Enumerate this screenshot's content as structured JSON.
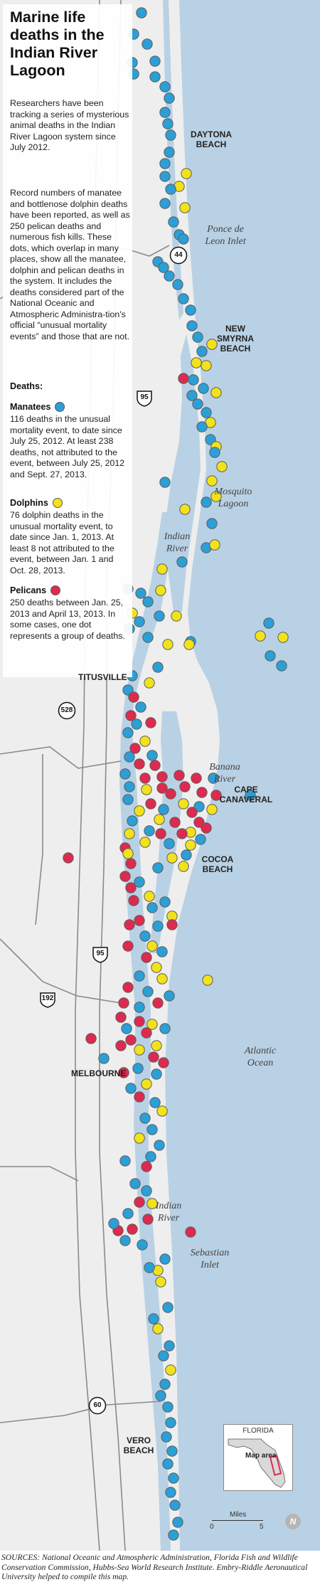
{
  "title": "Marine life deaths in the Indian River Lagoon",
  "intro": "Researchers have been tracking a series of mysterious animal deaths in the Indian River Lagoon system since July 2012.",
  "intro2": "Record numbers of manatee and bottlenose dolphin deaths have been reported, as well as 250 pelican deaths and numerous fish kills. These dots, which overlap in many places, show all the manatee, dolphin and pelican deaths in the system. It includes the deaths considered part of the National Oceanic and Atmospheric Administra-tion's official “unusual mortality events” and those that are not.",
  "legend": {
    "heading": "Deaths:",
    "items": [
      {
        "key": "manatee",
        "label": "Manatees",
        "color": "#2b9fd6",
        "text": "116 deaths in the unusual mortality event, to date since July 25, 2012. At least 238 deaths, not attributed to the event, between July 25, 2012 and Sept. 27, 2013."
      },
      {
        "key": "dolphin",
        "label": "Dolphins",
        "color": "#f2e21c",
        "text": "76 dolphin deaths in the unusual mortality event, to date since Jan. 1, 2013. At least 8 not attributed to the event, between Jan. 1 and Oct. 28, 2013."
      },
      {
        "key": "pelican",
        "label": "Pelicans",
        "color": "#dd2a4e",
        "text": "250 deaths between Jan. 25, 2013 and April 13, 2013. In some cases, one dot represents a group of deaths."
      }
    ]
  },
  "places": [
    {
      "name": "DAYTONA BEACH"
    },
    {
      "name": "NEW SMYRNA BEACH"
    },
    {
      "name": "TITUSVILLE"
    },
    {
      "name": "CAPE CANAVERAL"
    },
    {
      "name": "COCOA BEACH"
    },
    {
      "name": "MELBOURNE"
    },
    {
      "name": "VERO BEACH"
    }
  ],
  "water_labels": [
    {
      "name": "Ponce de Leon Inlet"
    },
    {
      "name": "Mosquito Lagoon"
    },
    {
      "name": "Indian River"
    },
    {
      "name": "Banana River"
    },
    {
      "name": "Atlantic Ocean"
    },
    {
      "name": "Indian River"
    },
    {
      "name": "Sebastian Inlet"
    }
  ],
  "highways": [
    {
      "number": "44",
      "type": "state"
    },
    {
      "number": "95",
      "type": "interstate"
    },
    {
      "number": "528",
      "type": "state"
    },
    {
      "number": "95",
      "type": "interstate"
    },
    {
      "number": "192",
      "type": "us"
    },
    {
      "number": "60",
      "type": "state"
    }
  ],
  "inset": {
    "title": "FLORIDA",
    "label": "Map area"
  },
  "scale": {
    "label": "Miles",
    "start": "0",
    "end": "5"
  },
  "compass": "N",
  "sources": "SOURCES: National Oceanic and Atmospheric Administration, Florida Fish and Wildlife Conservation Commission, Hubbs-Sea World Research Institute. Embry-Riddle Aeronautical University helped to compile this map.",
  "colors": {
    "water": "#b9d1e4",
    "land": "#eeeeee",
    "road": "#808080",
    "manatee": "#2b9fd6",
    "dolphin": "#f2e21c",
    "pelican": "#dd2a4e"
  }
}
